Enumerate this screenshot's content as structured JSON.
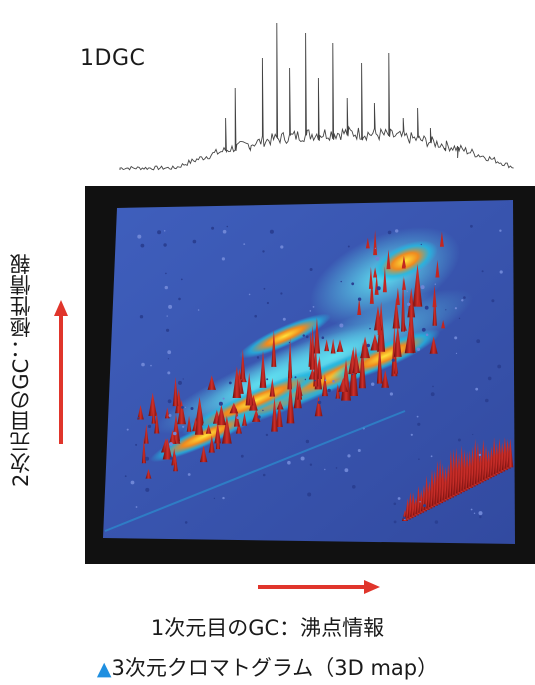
{
  "top_chromatogram": {
    "label": "1DGC"
  },
  "axes": {
    "y_label": "2次元目のGC：極性情報",
    "x_label": "1次元目のGC：沸点情報"
  },
  "caption": {
    "marker": "▲",
    "text": "3次元クロマトグラム（3D map）"
  },
  "colors": {
    "map_background": "#3a56b0",
    "frame": "#111111",
    "arrow": "#e0352b",
    "caption_marker": "#1f8fe0",
    "peak": "#b01a1a"
  }
}
